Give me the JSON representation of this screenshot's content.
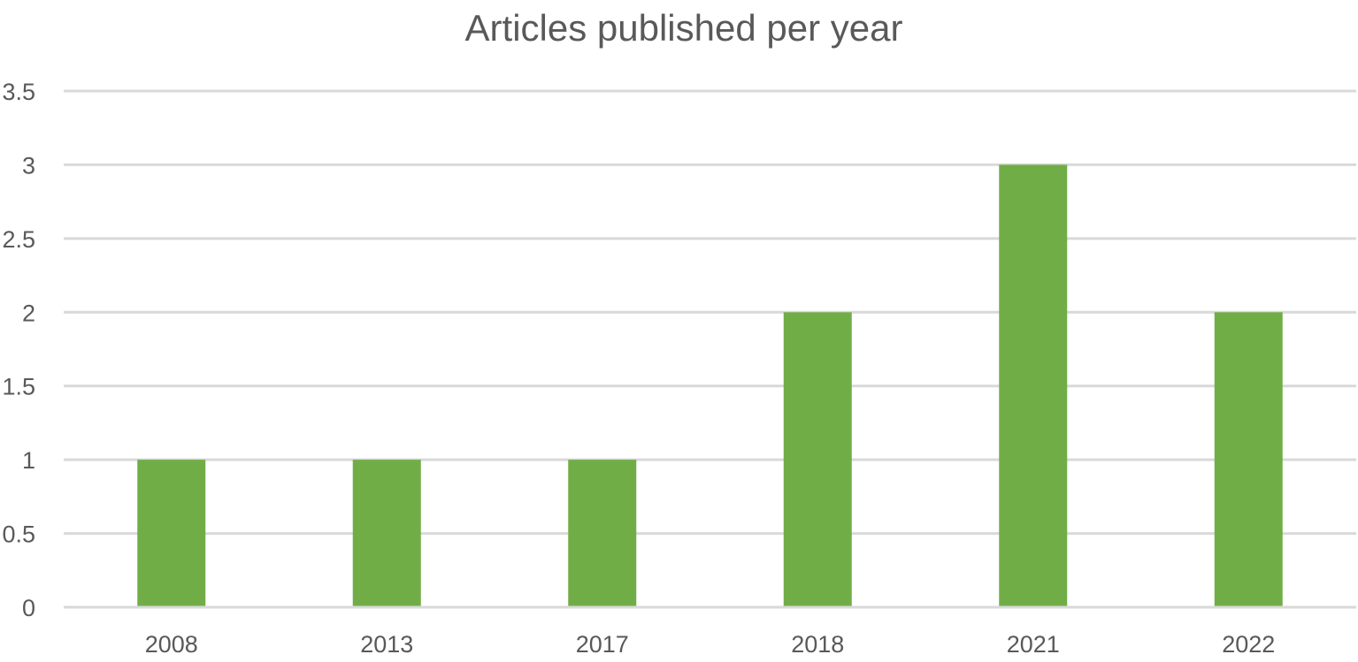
{
  "chart_data": {
    "type": "bar",
    "title": "Articles published per year",
    "xlabel": "",
    "ylabel": "",
    "categories": [
      "2008",
      "2013",
      "2017",
      "2018",
      "2021",
      "2022"
    ],
    "values": [
      1,
      1,
      1,
      2,
      3,
      2
    ],
    "ylim": [
      0,
      3.5
    ],
    "yticks": [
      "0",
      "0.5",
      "1",
      "1.5",
      "2",
      "2.5",
      "3",
      "3.5"
    ],
    "grid": true,
    "legend": "none",
    "bar_color": "#70ad47"
  }
}
